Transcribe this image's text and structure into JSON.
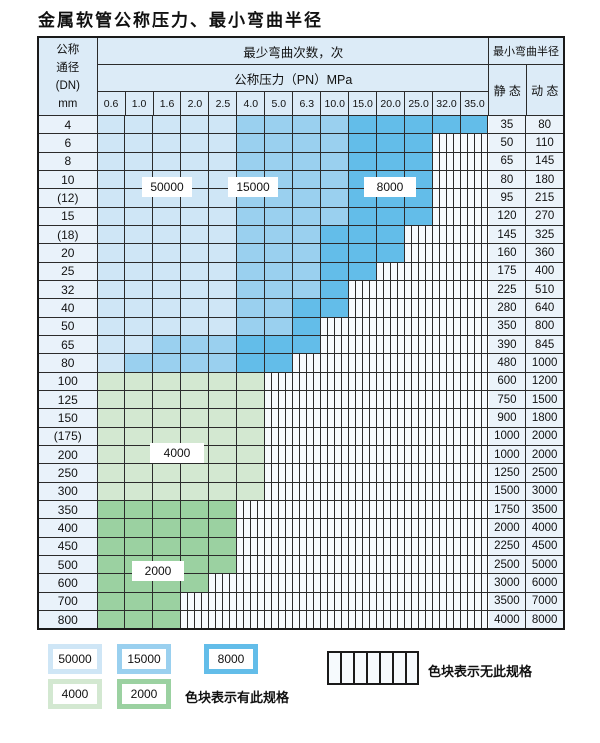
{
  "title": "金属软管公称压力、最小弯曲半径",
  "colors": {
    "b1": "#cfe6f6",
    "b2": "#9ad0ef",
    "b3": "#63bde9",
    "g1": "#d3e8d1",
    "g2": "#9bd1a1",
    "header_bg": "#dcebf7",
    "dn_bg": "#e9f2fa",
    "value_bg": "#ebf3fa",
    "stripe_bg": "#f6fafd",
    "grid": "#2b2b2b"
  },
  "header": {
    "dn_lines": [
      "公称",
      "通径",
      "(DN)",
      "mm"
    ],
    "cycles_label": "最少弯曲次数，次",
    "pressure_label": "公称压力（PN）MPa",
    "radius_label": "最小弯曲半径",
    "static_label": "静 态",
    "dynamic_label": "动 态",
    "pressures": [
      "0.6",
      "1.0",
      "1.6",
      "2.0",
      "2.5",
      "4.0",
      "5.0",
      "6.3",
      "10.0",
      "15.0",
      "20.0",
      "25.0",
      "32.0",
      "35.0"
    ]
  },
  "zone_labels": {
    "z50000": "50000",
    "z15000": "15000",
    "z8000": "8000",
    "z4000": "4000",
    "z2000": "2000"
  },
  "rows": [
    {
      "dn": "4",
      "static": "35",
      "dynamic": "80",
      "zone": "blue",
      "bands": [
        4,
        8,
        13
      ]
    },
    {
      "dn": "6",
      "static": "50",
      "dynamic": "110",
      "zone": "blue",
      "bands": [
        4,
        8,
        11
      ]
    },
    {
      "dn": "8",
      "static": "65",
      "dynamic": "145",
      "zone": "blue",
      "bands": [
        4,
        8,
        11
      ]
    },
    {
      "dn": "10",
      "static": "80",
      "dynamic": "180",
      "zone": "blue",
      "bands": [
        4,
        8,
        11
      ]
    },
    {
      "dn": "(12)",
      "static": "95",
      "dynamic": "215",
      "zone": "blue",
      "bands": [
        4,
        8,
        11
      ]
    },
    {
      "dn": "15",
      "static": "120",
      "dynamic": "270",
      "zone": "blue",
      "bands": [
        4,
        8,
        11
      ]
    },
    {
      "dn": "(18)",
      "static": "145",
      "dynamic": "325",
      "zone": "blue",
      "bands": [
        4,
        7,
        10
      ]
    },
    {
      "dn": "20",
      "static": "160",
      "dynamic": "360",
      "zone": "blue",
      "bands": [
        4,
        7,
        10
      ]
    },
    {
      "dn": "25",
      "static": "175",
      "dynamic": "400",
      "zone": "blue",
      "bands": [
        4,
        7,
        9
      ]
    },
    {
      "dn": "32",
      "static": "225",
      "dynamic": "510",
      "zone": "blue",
      "bands": [
        4,
        7,
        8
      ]
    },
    {
      "dn": "40",
      "static": "280",
      "dynamic": "640",
      "zone": "blue",
      "bands": [
        4,
        6,
        8
      ]
    },
    {
      "dn": "50",
      "static": "350",
      "dynamic": "800",
      "zone": "blue",
      "bands": [
        4,
        6,
        7
      ]
    },
    {
      "dn": "65",
      "static": "390",
      "dynamic": "845",
      "zone": "blue",
      "bands": [
        1,
        4,
        7
      ]
    },
    {
      "dn": "80",
      "static": "480",
      "dynamic": "1000",
      "zone": "blue",
      "bands": [
        0,
        4,
        6
      ]
    },
    {
      "dn": "100",
      "static": "600",
      "dynamic": "1200",
      "zone": "g1",
      "bands": [
        5,
        5,
        5
      ]
    },
    {
      "dn": "125",
      "static": "750",
      "dynamic": "1500",
      "zone": "g1",
      "bands": [
        5,
        5,
        5
      ]
    },
    {
      "dn": "150",
      "static": "900",
      "dynamic": "1800",
      "zone": "g1",
      "bands": [
        5,
        5,
        5
      ]
    },
    {
      "dn": "(175)",
      "static": "1000",
      "dynamic": "2000",
      "zone": "g1",
      "bands": [
        5,
        5,
        5
      ]
    },
    {
      "dn": "200",
      "static": "1000",
      "dynamic": "2000",
      "zone": "g1",
      "bands": [
        5,
        5,
        5
      ]
    },
    {
      "dn": "250",
      "static": "1250",
      "dynamic": "2500",
      "zone": "g1",
      "bands": [
        5,
        5,
        5
      ]
    },
    {
      "dn": "300",
      "static": "1500",
      "dynamic": "3000",
      "zone": "g1",
      "bands": [
        5,
        5,
        5
      ]
    },
    {
      "dn": "350",
      "static": "1750",
      "dynamic": "3500",
      "zone": "g2",
      "bands": [
        4,
        4,
        4
      ]
    },
    {
      "dn": "400",
      "static": "2000",
      "dynamic": "4000",
      "zone": "g2",
      "bands": [
        4,
        4,
        4
      ]
    },
    {
      "dn": "450",
      "static": "2250",
      "dynamic": "4500",
      "zone": "g2",
      "bands": [
        4,
        4,
        4
      ]
    },
    {
      "dn": "500",
      "static": "2500",
      "dynamic": "5000",
      "zone": "g2",
      "bands": [
        4,
        4,
        4
      ]
    },
    {
      "dn": "600",
      "static": "3000",
      "dynamic": "6000",
      "zone": "g2",
      "bands": [
        3,
        3,
        3
      ]
    },
    {
      "dn": "700",
      "static": "3500",
      "dynamic": "7000",
      "zone": "g2",
      "bands": [
        2,
        2,
        2
      ]
    },
    {
      "dn": "800",
      "static": "4000",
      "dynamic": "8000",
      "zone": "g2",
      "bands": [
        2,
        2,
        2
      ]
    }
  ],
  "legend": {
    "swatches": {
      "s50000": "50000",
      "s15000": "15000",
      "s8000": "8000",
      "s4000": "4000",
      "s2000": "2000"
    },
    "present_text": "色块表示有此规格",
    "absent_text": "色块表示无此规格"
  }
}
